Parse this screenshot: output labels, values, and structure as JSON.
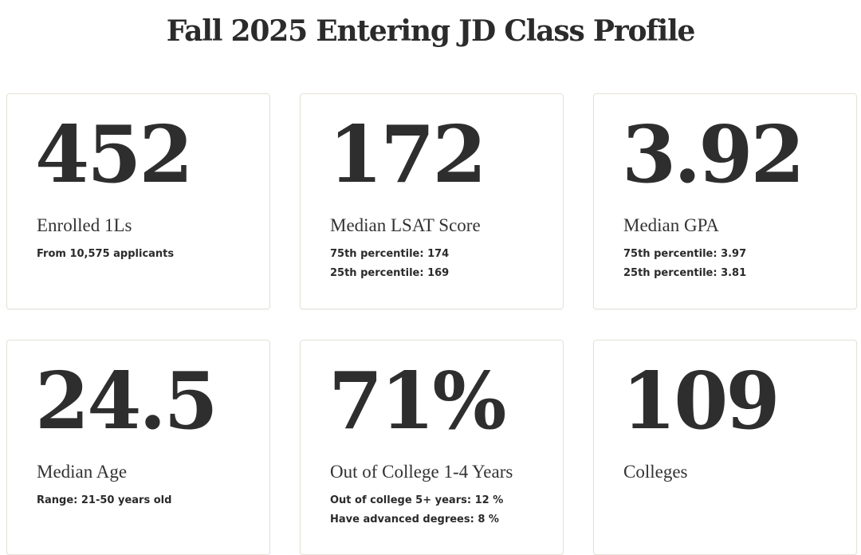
{
  "page": {
    "title": "Fall 2025 Entering JD Class Profile"
  },
  "stats": [
    {
      "value": "452",
      "label": "Enrolled 1Ls",
      "details": [
        "From 10,575 applicants"
      ]
    },
    {
      "value": "172",
      "label": "Median LSAT Score",
      "details": [
        "75th percentile: 174",
        "25th percentile: 169"
      ]
    },
    {
      "value": "3.92",
      "label": "Median GPA",
      "details": [
        "75th percentile: 3.97",
        "25th percentile: 3.81"
      ]
    },
    {
      "value": "24.5",
      "label": "Median Age",
      "details": [
        "Range: 21-50 years old"
      ]
    },
    {
      "value": "71%",
      "label": "Out of College 1-4 Years",
      "details": [
        "Out of college 5+ years: 12 %",
        "Have advanced degrees: 8 %"
      ]
    },
    {
      "value": "109",
      "label": "Colleges",
      "details": []
    }
  ],
  "colors": {
    "text": "#2e2e2e",
    "card_border": "#e6e1d8",
    "background": "#ffffff"
  }
}
